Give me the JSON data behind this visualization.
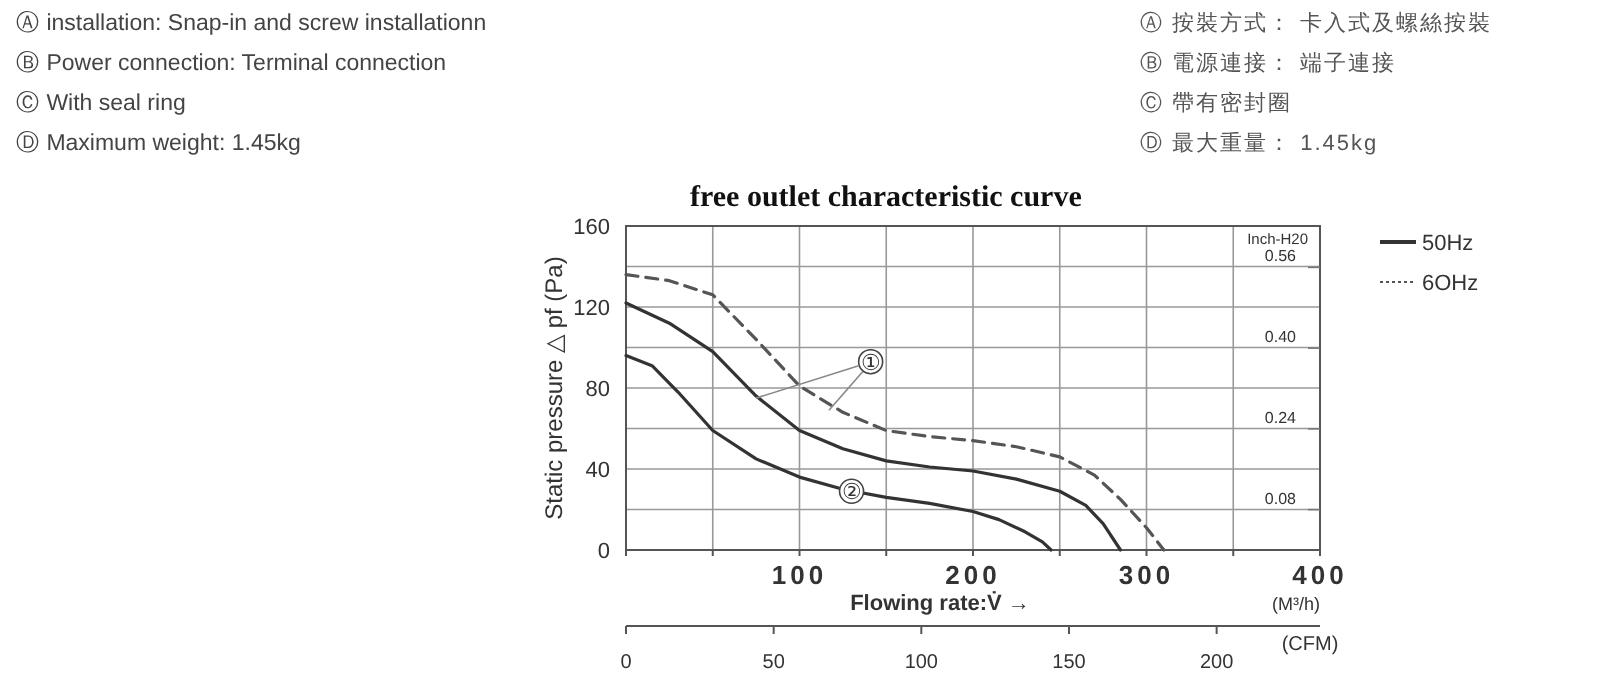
{
  "chart_data": {
    "type": "line",
    "title": "free outlet characteristic curve",
    "xlabel": "Flowing rate:V̇ →",
    "ylabel": "Static pressure △ pf (Pa)",
    "y2label": "Inch-H20",
    "x2label": "(CFM)",
    "annotations": [
      "Ⓐ installation:  Snap-in and screw installationn",
      "Ⓑ Power connection: Terminal connection",
      "Ⓒ With seal ring",
      "Ⓓ Maximum weight:  1.45kg",
      "Ⓐ 按裝方式：  卡入式及螺絲按裝",
      "Ⓑ 電源連接：  端子連接",
      "Ⓒ 帶有密封圈",
      "Ⓓ 最大重量：  1.45kg",
      "(M³/h)",
      {
        "text": "①",
        "x": 141,
        "y": 93
      },
      {
        "text": "②",
        "x": 130,
        "y": 29
      }
    ],
    "series": [
      {
        "name": "50Hz",
        "color": "#333333",
        "line_style": "solid",
        "x": [
          0,
          25,
          50,
          75,
          100,
          125,
          150,
          175,
          200,
          225,
          250,
          265,
          275,
          285
        ],
        "values": [
          122,
          112,
          98,
          76,
          59,
          50,
          44,
          41,
          39,
          35,
          29,
          22,
          13,
          0
        ]
      },
      {
        "name": "6OHz",
        "color": "#555555",
        "line_style": "dashed",
        "x": [
          0,
          25,
          50,
          75,
          100,
          125,
          150,
          175,
          200,
          225,
          250,
          270,
          285,
          300,
          310
        ],
        "values": [
          136,
          133,
          126,
          104,
          81,
          68,
          59,
          56,
          54,
          51,
          46,
          37,
          25,
          11,
          0
        ]
      },
      {
        "color": "#333333",
        "line_style": "solid",
        "x": [
          0,
          15,
          30,
          50,
          75,
          100,
          125,
          150,
          175,
          200,
          215,
          230,
          240,
          245
        ],
        "values": [
          96,
          91,
          78,
          59,
          45,
          36,
          30,
          26,
          23,
          19,
          15,
          9,
          4,
          0
        ]
      }
    ],
    "xlim": [
      0,
      400
    ],
    "xticks": [
      {
        "value": 0,
        "label": null
      },
      {
        "value": 50,
        "label": null
      },
      100,
      {
        "value": 150,
        "label": null
      },
      200,
      {
        "value": 250,
        "label": null
      },
      300,
      {
        "value": 350,
        "label": null
      },
      400
    ],
    "ylim": [
      0,
      160
    ],
    "yticks": [
      0,
      {
        "value": 20,
        "label": null
      },
      40,
      {
        "value": 60,
        "label": null
      },
      80,
      {
        "value": 100,
        "label": null
      },
      120,
      {
        "value": 140,
        "label": null
      },
      160
    ],
    "y2lim": [
      0,
      0.642
    ],
    "y2ticks": [
      {
        "value": 0.08,
        "label": "0.08"
      },
      {
        "value": 0.24,
        "label": "0.24"
      },
      {
        "value": 0.4,
        "label": "0.40"
      },
      {
        "value": 0.56,
        "label": "0.56"
      }
    ],
    "x2lim": [
      0,
      235
    ],
    "x2ticks": [
      0,
      50,
      100,
      150,
      200
    ],
    "grid": true,
    "legend": "right"
  }
}
